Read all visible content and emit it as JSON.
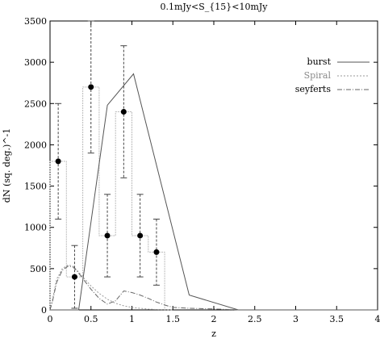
{
  "chart_data": {
    "type": "line",
    "title": "0.1mJy<S_{15}<10mJy",
    "xlabel": "z",
    "ylabel": "dN (sq. deg.)^-1",
    "xlim": [
      0,
      4
    ],
    "ylim": [
      0,
      3500
    ],
    "xticks": [
      "0",
      "0.5",
      "1",
      "1.5",
      "2",
      "2.5",
      "3",
      "3.5",
      "4"
    ],
    "xtick_values": [
      0,
      0.5,
      1,
      1.5,
      2,
      2.5,
      3,
      3.5,
      4
    ],
    "yticks": [
      "0",
      "500",
      "1000",
      "1500",
      "2000",
      "2500",
      "3000",
      "3500"
    ],
    "ytick_values": [
      0,
      500,
      1000,
      1500,
      2000,
      2500,
      3000,
      3500
    ],
    "grid": false,
    "legend_position": "top-right",
    "series": [
      {
        "name": "burst",
        "color": "#555555",
        "style": "solid",
        "x": [
          0,
          0.3,
          0.35,
          0.7,
          1.02,
          1.7,
          2.3,
          4
        ],
        "y": [
          0,
          0,
          0,
          2480,
          2860,
          180,
          0,
          0
        ]
      },
      {
        "name": "Spiral",
        "color": "#9a9a9a",
        "style": "dotted",
        "x": [
          0,
          0.03,
          0.08,
          0.15,
          0.22,
          0.28,
          0.33,
          0.4,
          0.5,
          0.6,
          0.7,
          0.8,
          0.9,
          1.0,
          1.1,
          1.2,
          1.3,
          1.4,
          1.5
        ],
        "y": [
          0,
          120,
          370,
          500,
          545,
          530,
          480,
          400,
          290,
          200,
          130,
          80,
          50,
          30,
          20,
          10,
          5,
          3,
          0
        ]
      },
      {
        "name": "seyferts",
        "color": "#666666",
        "style": "dashdot",
        "x": [
          0,
          0.03,
          0.08,
          0.15,
          0.22,
          0.28,
          0.33,
          0.4,
          0.5,
          0.6,
          0.7,
          0.8,
          0.9,
          1.0,
          1.1,
          1.2,
          1.3,
          1.4,
          1.5,
          1.6,
          1.7,
          1.9,
          2.1,
          2.3
        ],
        "y": [
          0,
          100,
          330,
          480,
          530,
          520,
          470,
          380,
          250,
          140,
          70,
          110,
          230,
          210,
          180,
          140,
          95,
          60,
          30,
          25,
          20,
          15,
          8,
          0
        ]
      }
    ],
    "observed": {
      "name": "observed",
      "x": [
        0.1,
        0.3,
        0.5,
        0.7,
        0.9,
        1.1,
        1.3
      ],
      "y": [
        1800,
        400,
        2700,
        900,
        2400,
        900,
        700
      ],
      "err": [
        700,
        380,
        800,
        500,
        800,
        500,
        400
      ]
    },
    "histogram": {
      "edges": [
        0,
        0.2,
        0.4,
        0.6,
        0.8,
        1.0,
        1.2,
        1.4
      ],
      "values": [
        1800,
        400,
        2700,
        900,
        2400,
        900,
        700
      ]
    }
  }
}
